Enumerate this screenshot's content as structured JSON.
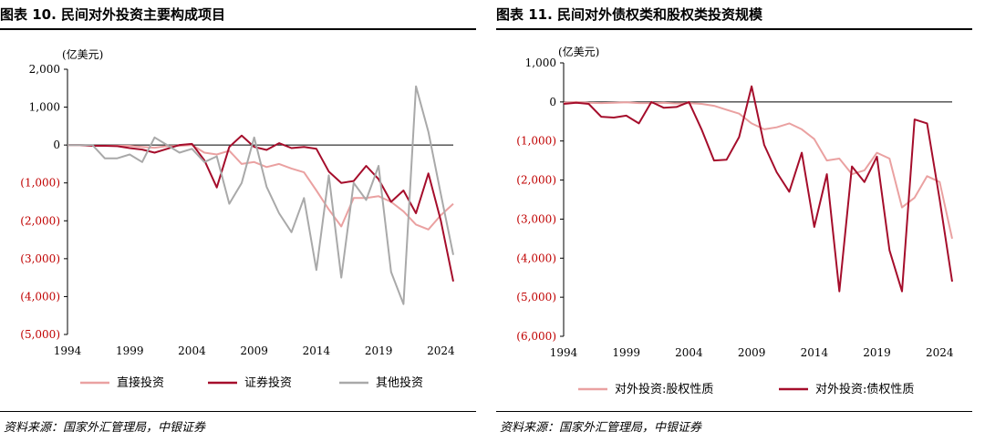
{
  "left": {
    "title": "图表 10. 民间对外投资主要构成项目",
    "source": "资料来源：国家外汇管理局，中银证券"
  },
  "right": {
    "title": "图表 11. 民间对外债权类和股权类投资规模",
    "source": "资料来源：国家外汇管理局，中银证券"
  },
  "colors": {
    "direct": "#eaa1a1",
    "securities": "#a50d2b",
    "other": "#a9a9a9",
    "equity": "#eaa1a1",
    "debt": "#a50d2b",
    "negative_tick": "#c00000"
  },
  "chart_data": [
    {
      "type": "line",
      "unit_label": "(亿美元)",
      "x": [
        1994,
        1995,
        1996,
        1997,
        1998,
        1999,
        2000,
        2001,
        2002,
        2003,
        2004,
        2005,
        2006,
        2007,
        2008,
        2009,
        2010,
        2011,
        2012,
        2013,
        2014,
        2015,
        2016,
        2017,
        2018,
        2019,
        2020,
        2021,
        2022,
        2023,
        2024,
        2025
      ],
      "x_ticks": [
        "1994",
        "1999",
        "2004",
        "2009",
        "2014",
        "2019",
        "2024"
      ],
      "x_tick_values": [
        1994,
        1999,
        2004,
        2009,
        2014,
        2019,
        2024
      ],
      "ylim": [
        -5000,
        2000
      ],
      "y_ticks": [
        2000,
        1000,
        0,
        -1000,
        -2000,
        -3000,
        -4000,
        -5000
      ],
      "y_tick_labels": [
        "2,000",
        "1,000",
        "0",
        "(1,000)",
        "(2,000)",
        "(3,000)",
        "(4,000)",
        "(5,000)"
      ],
      "legend_position": "bottom",
      "series": [
        {
          "name": "直接投资",
          "color_key": "direct",
          "values": [
            0,
            0,
            -20,
            -20,
            -20,
            -20,
            -50,
            -70,
            -30,
            -20,
            0,
            -200,
            -250,
            -150,
            -500,
            -450,
            -580,
            -500,
            -620,
            -720,
            -1200,
            -1700,
            -2150,
            -1400,
            -1400,
            -1350,
            -1500,
            -1750,
            -2100,
            -2230,
            -1850,
            -1550
          ]
        },
        {
          "name": "证券投资",
          "color_key": "securities",
          "values": [
            0,
            0,
            -20,
            -20,
            -30,
            -80,
            -120,
            -200,
            -100,
            0,
            30,
            -400,
            -1120,
            -50,
            250,
            -50,
            -130,
            50,
            -80,
            -50,
            -100,
            -700,
            -1000,
            -950,
            -550,
            -900,
            -1500,
            -1200,
            -1800,
            -750,
            -2000,
            -3600
          ]
        },
        {
          "name": "其他投资",
          "color_key": "other",
          "values": [
            0,
            0,
            0,
            -350,
            -350,
            -250,
            -450,
            200,
            0,
            -200,
            -100,
            -450,
            -300,
            -1550,
            -1000,
            200,
            -1100,
            -1800,
            -2300,
            -1400,
            -3300,
            -800,
            -3500,
            -1000,
            -1450,
            -550,
            -3350,
            -4200,
            1550,
            350,
            -1300,
            -2900
          ]
        }
      ]
    },
    {
      "type": "line",
      "unit_label": "(亿美元)",
      "x": [
        1994,
        1995,
        1996,
        1997,
        1998,
        1999,
        2000,
        2001,
        2002,
        2003,
        2004,
        2005,
        2006,
        2007,
        2008,
        2009,
        2010,
        2011,
        2012,
        2013,
        2014,
        2015,
        2016,
        2017,
        2018,
        2019,
        2020,
        2021,
        2022,
        2023,
        2024,
        2025
      ],
      "x_ticks": [
        "1994",
        "1999",
        "2004",
        "2009",
        "2014",
        "2019",
        "2024"
      ],
      "x_tick_values": [
        1994,
        1999,
        2004,
        2009,
        2014,
        2019,
        2024
      ],
      "ylim": [
        -6000,
        1000
      ],
      "y_ticks": [
        1000,
        0,
        -1000,
        -2000,
        -3000,
        -4000,
        -5000,
        -6000
      ],
      "y_tick_labels": [
        "1,000",
        "0",
        "(1,000)",
        "(2,000)",
        "(3,000)",
        "(4,000)",
        "(5,000)",
        "(6,000)"
      ],
      "legend_position": "bottom",
      "series": [
        {
          "name": "对外投资:股权性质",
          "color_key": "equity",
          "values": [
            -20,
            0,
            -20,
            -30,
            -20,
            -10,
            -30,
            -30,
            -20,
            -40,
            -30,
            -50,
            -100,
            -200,
            -300,
            -550,
            -700,
            -650,
            -550,
            -700,
            -950,
            -1500,
            -1450,
            -1850,
            -1750,
            -1300,
            -1450,
            -2700,
            -2450,
            -1900,
            -2050,
            -3500
          ]
        },
        {
          "name": "对外投资:债权性质",
          "color_key": "debt",
          "values": [
            -50,
            -20,
            -50,
            -380,
            -400,
            -350,
            -550,
            0,
            -150,
            -130,
            0,
            -700,
            -1500,
            -1480,
            -900,
            400,
            -1100,
            -1800,
            -2300,
            -1300,
            -3200,
            -1850,
            -4850,
            -1650,
            -2050,
            -1400,
            -3800,
            -4850,
            -450,
            -550,
            -2500,
            -4600
          ]
        }
      ]
    }
  ]
}
